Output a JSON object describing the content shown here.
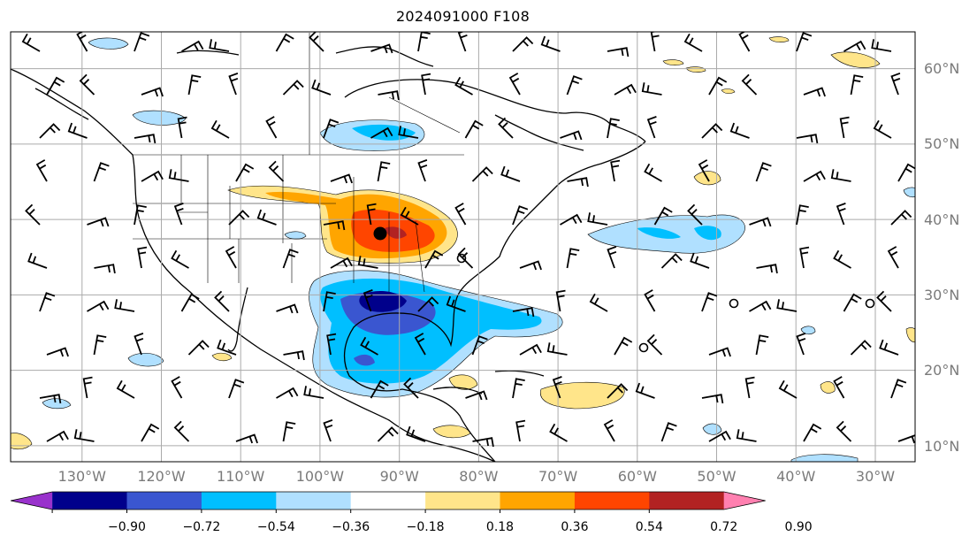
{
  "title": "2024091000 F108",
  "lat_labels": [
    "60°N",
    "50°N",
    "40°N",
    "30°N",
    "20°N",
    "10°N"
  ],
  "lon_labels": [
    "130°W",
    "120°W",
    "110°W",
    "100°W",
    "90°W",
    "80°W",
    "70°W",
    "60°W",
    "50°W",
    "40°W",
    "30°W"
  ],
  "colorbar": {
    "colors": [
      "#9932cc",
      "#00008b",
      "#3a56d0",
      "#00bfff",
      "#b0e0ff",
      "#ffffff",
      "#ffe58a",
      "#ffa500",
      "#ff4500",
      "#b22222",
      "#ff80b0"
    ],
    "tick_labels": [
      "−0.90",
      "−0.72",
      "−0.54",
      "−0.36",
      "−0.18",
      "0.18",
      "0.36",
      "0.54",
      "0.72",
      "0.90"
    ]
  },
  "map": {
    "extent": {
      "lon_min": -137,
      "lon_max": -23,
      "lat_min": 8,
      "lat_max": 65
    },
    "grid_color": "#aaaaaa",
    "center_marker": {
      "lon": -90.7,
      "lat": 38.5,
      "color": "#000000"
    }
  }
}
